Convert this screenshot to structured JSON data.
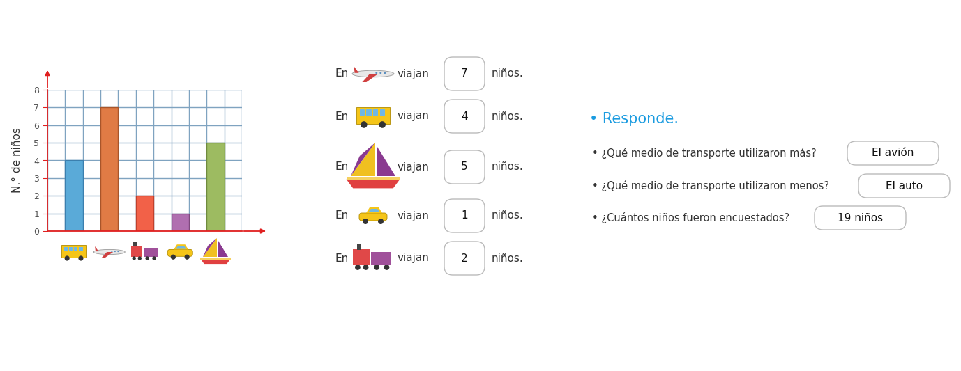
{
  "chart_data": {
    "type": "bar",
    "categories": [
      null,
      null,
      null,
      null,
      null
    ],
    "values": [
      4,
      7,
      2,
      1,
      5
    ],
    "colors": [
      "#5aaad8",
      "#e07b45",
      "#f26148",
      "#b06fb0",
      "#9dbb61"
    ],
    "ylabel": "N.° de niños",
    "ylim": [
      0,
      8
    ],
    "yticks": [
      0,
      1,
      2,
      3,
      4,
      5,
      6,
      7,
      8
    ],
    "grid": true
  },
  "statements": {
    "prefix": "En",
    "verb": "viajan",
    "suffix": "niños.",
    "rows": [
      7,
      4,
      5,
      1,
      2
    ]
  },
  "questions": {
    "heading": "• Responde.",
    "items": [
      {
        "question": "• ¿Qué medio de transporte utilizaron más?",
        "answer": "El avión"
      },
      {
        "question": "• ¿Qué medio de transporte utilizaron menos?",
        "answer": "El auto"
      },
      {
        "question": "• ¿Cuántos niños fueron encuestados?",
        "answer": "19 niños"
      }
    ]
  }
}
